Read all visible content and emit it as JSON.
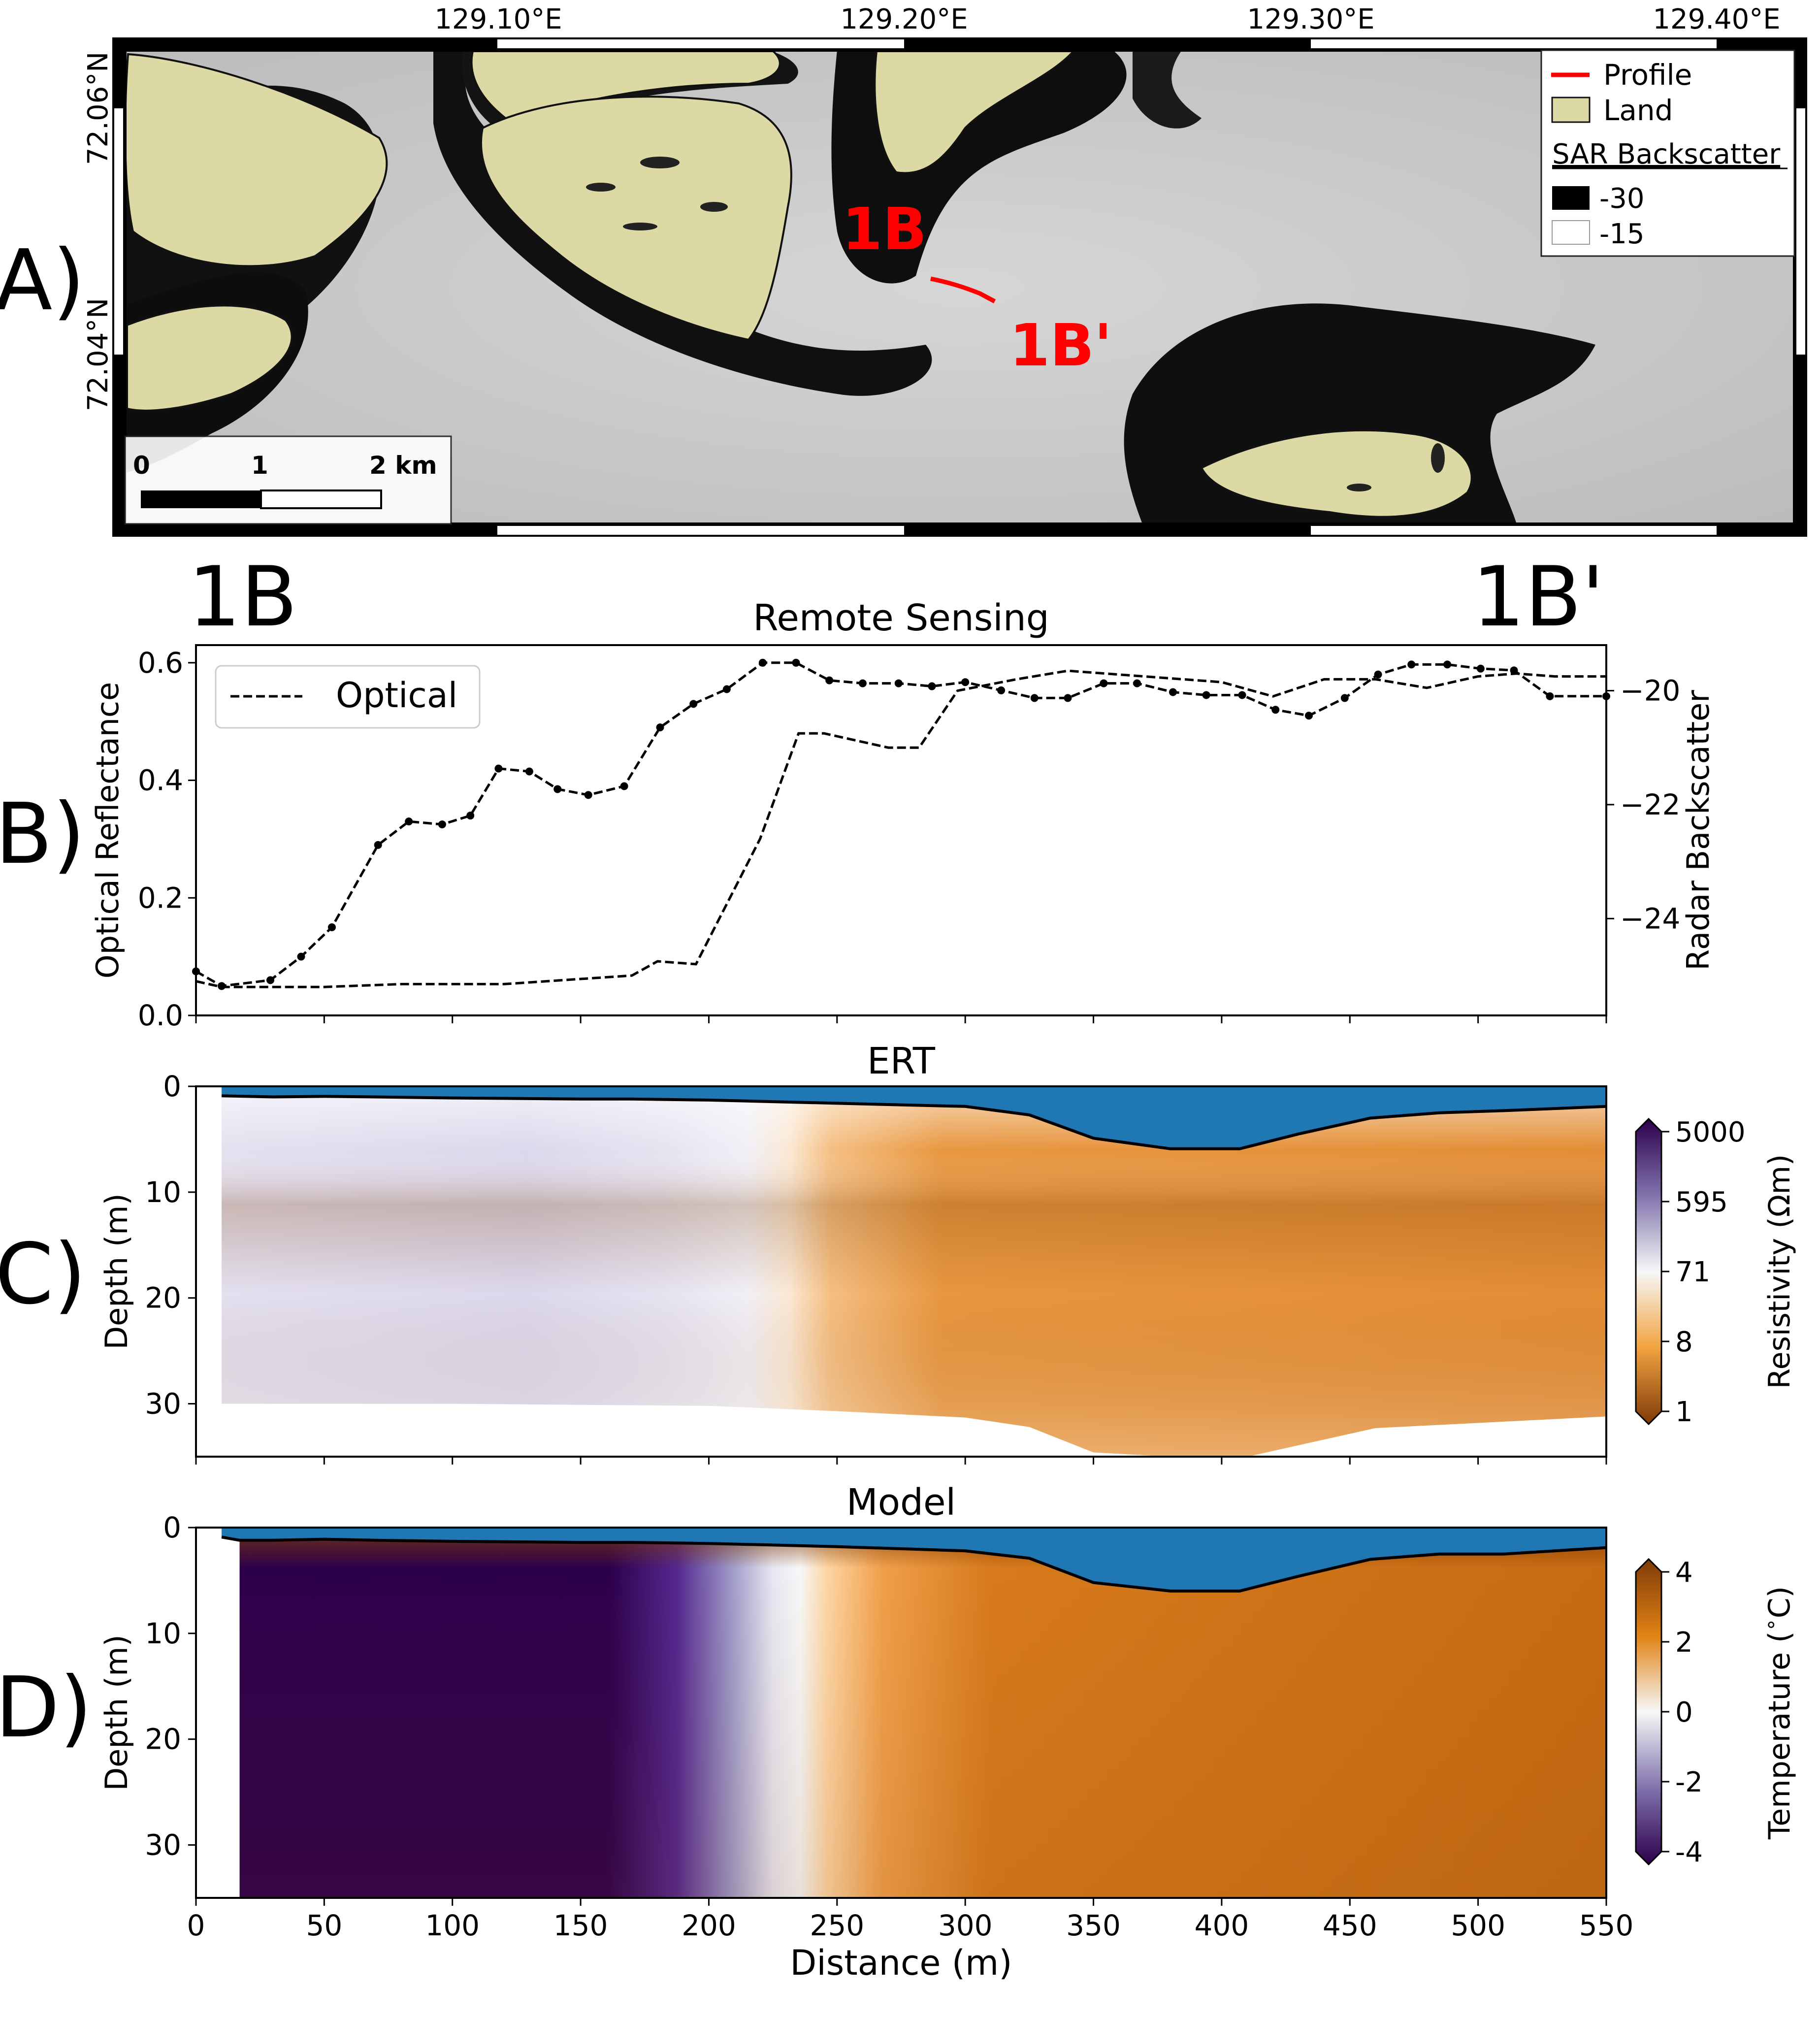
{
  "map": {
    "panel_label": "A)",
    "lon_ticks": [
      "129.10°E",
      "129.20°E",
      "129.30°E",
      "129.40°E"
    ],
    "lat_ticks": [
      "72.06°N",
      "72.04°N"
    ],
    "profile_start": "1B",
    "profile_end": "1B'",
    "legend": {
      "profile": "Profile",
      "land": "Land",
      "sar_title": "SAR Backscatter",
      "sar_low": "-30",
      "sar_high": "-15"
    },
    "scalebar": {
      "labels": [
        "0",
        "1",
        "2 km"
      ]
    },
    "colors": {
      "land": "#ddd9a4",
      "profile": "#ff0000"
    }
  },
  "profile_labels": {
    "start": "1B",
    "end": "1B'"
  },
  "chart_data": [
    {
      "panel_label": "B)",
      "type": "line",
      "title": "Remote Sensing",
      "xlabel": "",
      "ylabel": "Optical Reflectance",
      "y2label": "Radar Backscatter",
      "xlim": [
        0,
        550
      ],
      "ylim": [
        0.0,
        0.63
      ],
      "y2lim": [
        -25.7,
        -19.2
      ],
      "yticks": [
        "0.0",
        "0.2",
        "0.4",
        "0.6"
      ],
      "y2ticks": [
        "−24",
        "−22",
        "−20"
      ],
      "legend": "Optical",
      "legend_position": "top-left",
      "series": [
        {
          "name": "Optical",
          "axis": "left",
          "marker": "dot",
          "x": [
            0,
            10,
            29,
            41,
            53,
            71,
            83,
            96,
            107,
            118,
            130,
            141,
            153,
            167,
            181,
            194,
            207,
            221,
            234,
            247,
            260,
            274,
            287,
            300,
            314,
            327,
            340,
            354,
            367,
            381,
            394,
            408,
            421,
            434,
            448,
            461,
            474,
            488,
            501,
            514,
            528,
            550
          ],
          "y": [
            0.075,
            0.05,
            0.06,
            0.1,
            0.15,
            0.29,
            0.33,
            0.325,
            0.34,
            0.42,
            0.415,
            0.385,
            0.375,
            0.39,
            0.49,
            0.53,
            0.555,
            0.6,
            0.6,
            0.57,
            0.565,
            0.565,
            0.56,
            0.567,
            0.553,
            0.54,
            0.54,
            0.565,
            0.565,
            0.55,
            0.545,
            0.545,
            0.52,
            0.51,
            0.54,
            0.58,
            0.597,
            0.597,
            0.59,
            0.587,
            0.543,
            0.543
          ]
        },
        {
          "name": "",
          "axis": "right",
          "marker": "none",
          "x": [
            0,
            10,
            50,
            80,
            120,
            170,
            180,
            195,
            220,
            235,
            245,
            270,
            282,
            297,
            320,
            340,
            400,
            420,
            440,
            460,
            480,
            500,
            515,
            530,
            550
          ],
          "y": [
            -25.1,
            -25.2,
            -25.2,
            -25.15,
            -25.15,
            -25.0,
            -24.75,
            -24.8,
            -22.6,
            -20.75,
            -20.75,
            -21.0,
            -21.0,
            -20.0,
            -19.8,
            -19.65,
            -19.85,
            -20.1,
            -19.8,
            -19.8,
            -19.95,
            -19.75,
            -19.7,
            -19.75,
            -19.75
          ]
        }
      ]
    },
    {
      "panel_label": "C)",
      "type": "heatmap",
      "title": "ERT",
      "xlabel": "",
      "ylabel": "Depth (m)",
      "xlim": [
        0,
        550
      ],
      "ylim": [
        35,
        0
      ],
      "yticks": [
        "0",
        "10",
        "20",
        "30"
      ],
      "colorbar": {
        "label": "Resistivity (Ωm)",
        "ticks": [
          "5000",
          "595",
          "71",
          "8",
          "1"
        ],
        "scale": "log"
      },
      "water_color": "#1f77b4",
      "bathymetry": {
        "x": [
          10,
          30,
          50,
          70,
          100,
          150,
          170,
          200,
          250,
          300,
          325,
          350,
          380,
          407,
          430,
          458,
          485,
          510,
          550
        ],
        "depth": [
          0.9,
          1.0,
          0.95,
          1.0,
          1.1,
          1.2,
          1.2,
          1.3,
          1.6,
          1.9,
          2.7,
          4.9,
          5.9,
          5.9,
          4.5,
          3.0,
          2.5,
          2.3,
          1.9
        ]
      },
      "data_bottom": {
        "x": [
          10,
          100,
          200,
          250,
          300,
          325,
          350,
          380,
          410,
          460,
          550
        ],
        "depth": [
          30.0,
          30.0,
          30.2,
          30.7,
          31.3,
          32.2,
          34.6,
          35.0,
          35.0,
          32.3,
          31.2
        ]
      },
      "resistivity_zones": [
        {
          "x_from": 10,
          "x_to": 200,
          "depth_from": 2,
          "depth_to": 30,
          "resistivity": "100 to 900"
        },
        {
          "x_from": 200,
          "x_to": 230,
          "depth_from": 2,
          "depth_to": 30,
          "resistivity": "40 to 100"
        },
        {
          "x_from": 230,
          "x_to": 550,
          "depth_from": 2,
          "depth_to": 35,
          "resistivity": "2 to 20"
        }
      ]
    },
    {
      "panel_label": "D)",
      "type": "heatmap",
      "title": "Model",
      "xlabel": "Distance (m)",
      "ylabel": "Depth (m)",
      "xlim": [
        0,
        550
      ],
      "ylim": [
        35,
        0
      ],
      "xticks": [
        "0",
        "50",
        "100",
        "150",
        "200",
        "250",
        "300",
        "350",
        "400",
        "450",
        "500",
        "550"
      ],
      "yticks": [
        "0",
        "10",
        "20",
        "30"
      ],
      "colorbar": {
        "label": "Temperature ($^\\circ$C)",
        "ticks": [
          "4",
          "2",
          "0",
          "-2",
          "-4"
        ]
      },
      "water_color": "#1f77b4",
      "bathymetry": {
        "x": [
          10,
          17,
          30,
          50,
          70,
          100,
          150,
          170,
          200,
          250,
          300,
          325,
          350,
          380,
          407,
          430,
          458,
          485,
          510,
          550
        ],
        "depth": [
          0.9,
          1.2,
          1.2,
          1.1,
          1.2,
          1.3,
          1.4,
          1.4,
          1.5,
          1.8,
          2.2,
          2.9,
          5.2,
          6.0,
          6.0,
          4.6,
          3.0,
          2.5,
          2.5,
          1.9
        ]
      },
      "model_start_x": 17,
      "temperature_zones": [
        {
          "x_from": 17,
          "x_to": 160,
          "temp_C": -4
        },
        {
          "x_from": 160,
          "x_to": 205,
          "temp_C": "-4 to -1"
        },
        {
          "x_from": 205,
          "x_to": 225,
          "temp_C": 0
        },
        {
          "x_from": 225,
          "x_to": 550,
          "temp_C": "1 to 3"
        }
      ]
    }
  ]
}
